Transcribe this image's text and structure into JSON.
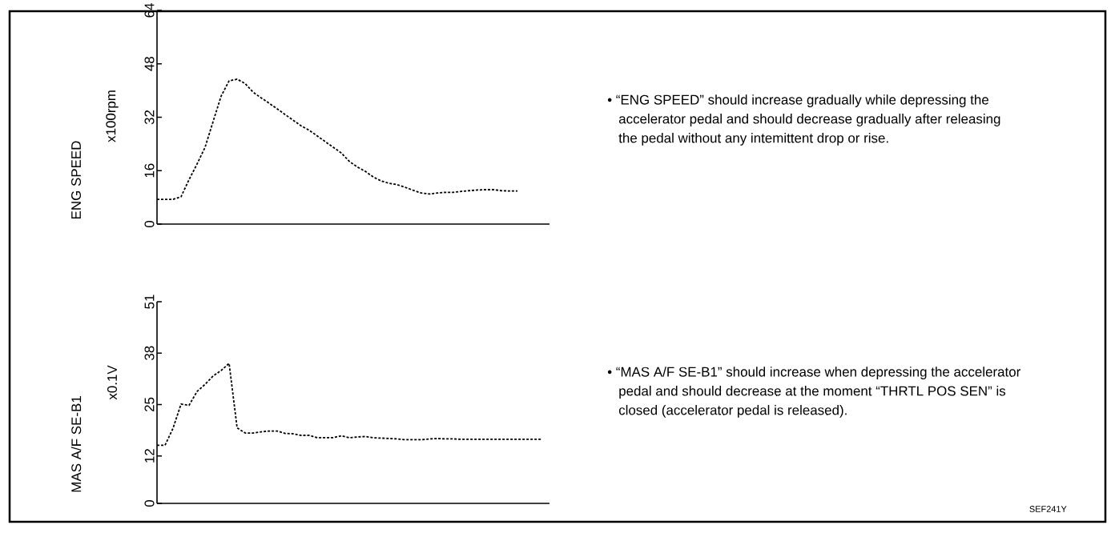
{
  "chart_data": [
    {
      "type": "line",
      "ylabel": "ENG SPEED",
      "categories": [
        null,
        null,
        null,
        null,
        null,
        null,
        null,
        null,
        null,
        null,
        null,
        null,
        null,
        null,
        null,
        null,
        null,
        null,
        null,
        null,
        null,
        null,
        null,
        null,
        null,
        null,
        null,
        null,
        null,
        null,
        null,
        null,
        null,
        null,
        null,
        null,
        null,
        null,
        null,
        null,
        null,
        null,
        null,
        null,
        null,
        null,
        null,
        null,
        null,
        null
      ],
      "series": [
        {
          "color": "#000000",
          "values": [
            7.4,
            7.4,
            7.4,
            8.2,
            13.3,
            18,
            23,
            30.7,
            38.3,
            42.9,
            43.4,
            42.1,
            39.5,
            37.8,
            36.2,
            34.5,
            32.8,
            31.1,
            29.4,
            28.1,
            26.4,
            24.7,
            23,
            21.3,
            18.8,
            17.1,
            15.8,
            14.1,
            12.9,
            12.2,
            11.8,
            11,
            10.1,
            9.3,
            9,
            9.3,
            9.5,
            9.5,
            9.8,
            10,
            10.2,
            10.3,
            10.3,
            10,
            9.9,
            9.9,
            null,
            null,
            null,
            null
          ]
        }
      ],
      "ylim": [
        0,
        64
      ],
      "yticks": [
        0,
        16,
        32,
        48,
        64
      ],
      "line_style": "dashed",
      "tick_labels": "y",
      "annotations": [
        "x100rpm",
        "• “ENG SPEED” should increase gradually while depressing the accelerator pedal and should decrease gradually after releasing the pedal without any intemittent drop or rise."
      ]
    },
    {
      "type": "line",
      "ylabel": "MAS A/F SE-B1",
      "categories": [
        null,
        null,
        null,
        null,
        null,
        null,
        null,
        null,
        null,
        null,
        null,
        null,
        null,
        null,
        null,
        null,
        null,
        null,
        null,
        null,
        null,
        null,
        null,
        null,
        null,
        null,
        null,
        null,
        null,
        null,
        null,
        null,
        null,
        null,
        null,
        null,
        null,
        null,
        null,
        null,
        null,
        null,
        null,
        null,
        null,
        null,
        null,
        null,
        null,
        null
      ],
      "series": [
        {
          "color": "#000000",
          "values": [
            14.7,
            14.7,
            19,
            25.1,
            24.8,
            28.3,
            30.1,
            32.2,
            33.6,
            35.4,
            19.1,
            17.8,
            17.8,
            18.1,
            18.3,
            18.3,
            17.7,
            17.6,
            17.2,
            17.2,
            16.6,
            16.6,
            16.6,
            17.1,
            16.6,
            16.8,
            16.9,
            16.6,
            16.5,
            16.4,
            16.3,
            16.1,
            16.1,
            16.1,
            16.3,
            16.4,
            16.3,
            16.3,
            16.2,
            16.2,
            16.2,
            16.2,
            16.2,
            16.2,
            16.2,
            16.2,
            16.2,
            16.2,
            16.2,
            null
          ]
        }
      ],
      "ylim": [
        0,
        51
      ],
      "yticks": [
        0,
        12,
        25,
        38,
        51
      ],
      "line_style": "dashed",
      "tick_labels": "y",
      "annotations": [
        "x0.1V",
        "• “MAS A/F SE-B1” should increase when depressing the accelerator pedal and should decrease at the moment “THRTL POS SEN” is closed (accelerator pedal is released).",
        "SEF241Y"
      ]
    }
  ]
}
